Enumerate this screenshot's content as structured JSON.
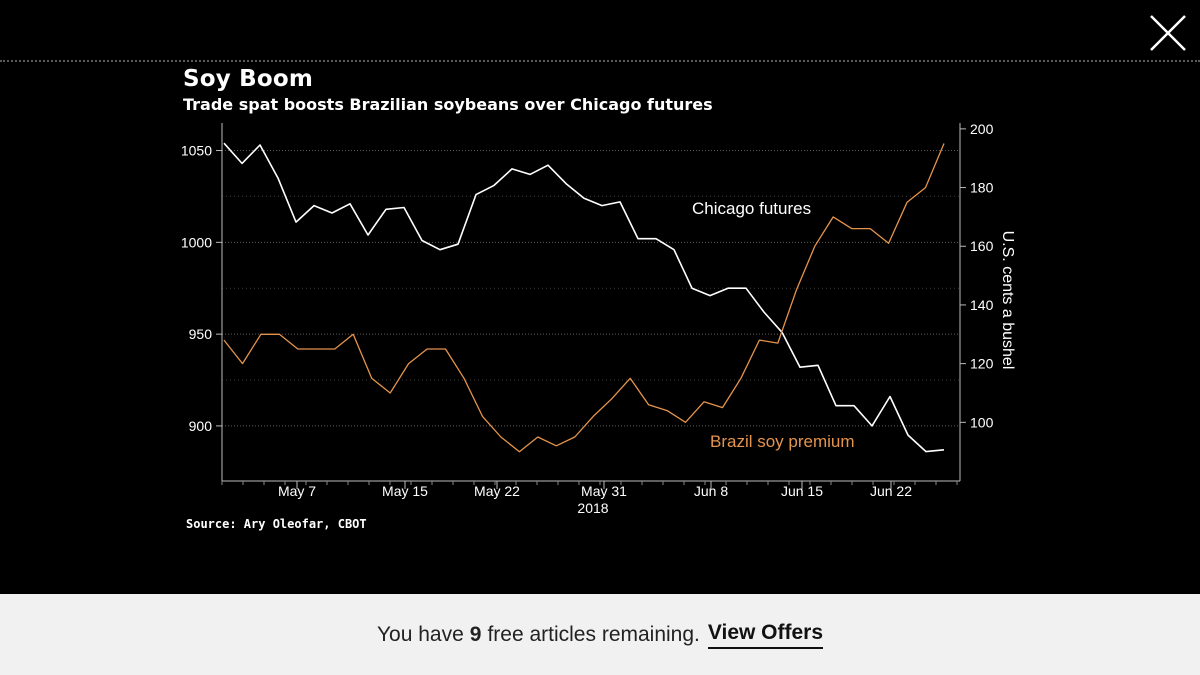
{
  "header": {
    "close_icon": "close-x-icon"
  },
  "chart_data": {
    "type": "line",
    "title": "Soy Boom",
    "subtitle": "Trade spat boosts Brazilian soybeans over Chicago futures",
    "source": "Source: Ary Oleofar, CBOT",
    "year_label": "2018",
    "x_tick_labels": [
      "May 7",
      "May 15",
      "May 22",
      "May 31",
      "Jun 8",
      "Jun 15",
      "Jun 22"
    ],
    "left_axis": {
      "ylim": [
        870,
        1065
      ],
      "ticks": [
        900,
        950,
        1000,
        1050
      ]
    },
    "right_axis": {
      "label": "U.S. cents a bushel",
      "ylim": [
        80,
        202
      ],
      "ticks": [
        100,
        120,
        140,
        160,
        180,
        200
      ]
    },
    "series": [
      {
        "name": "Chicago futures",
        "axis": "left",
        "color": "#ffffff",
        "values": [
          1054,
          1043,
          1053,
          1035,
          1011,
          1020,
          1016,
          1021,
          1004,
          1018,
          1019,
          1001,
          996,
          999,
          1026,
          1031,
          1040,
          1037,
          1042,
          1032,
          1024,
          1020,
          1022,
          1002,
          1002,
          996,
          975,
          971,
          975,
          975,
          962,
          951,
          932,
          933,
          911,
          911,
          900,
          916,
          895,
          886,
          887
        ]
      },
      {
        "name": "Brazil soy premium",
        "axis": "right",
        "color": "#e4944c",
        "values": [
          128,
          120,
          130,
          130,
          125,
          125,
          125,
          130,
          115,
          110,
          120,
          125,
          125,
          115,
          102,
          95,
          90,
          95,
          92,
          95,
          102,
          108,
          115,
          106,
          104,
          100,
          107,
          105,
          115,
          128,
          127,
          145,
          160,
          170,
          166,
          166,
          161,
          175,
          180,
          195
        ]
      }
    ]
  },
  "paywall": {
    "prefix": "You have",
    "count": "9",
    "suffix": "free articles remaining.",
    "link": "View Offers"
  }
}
